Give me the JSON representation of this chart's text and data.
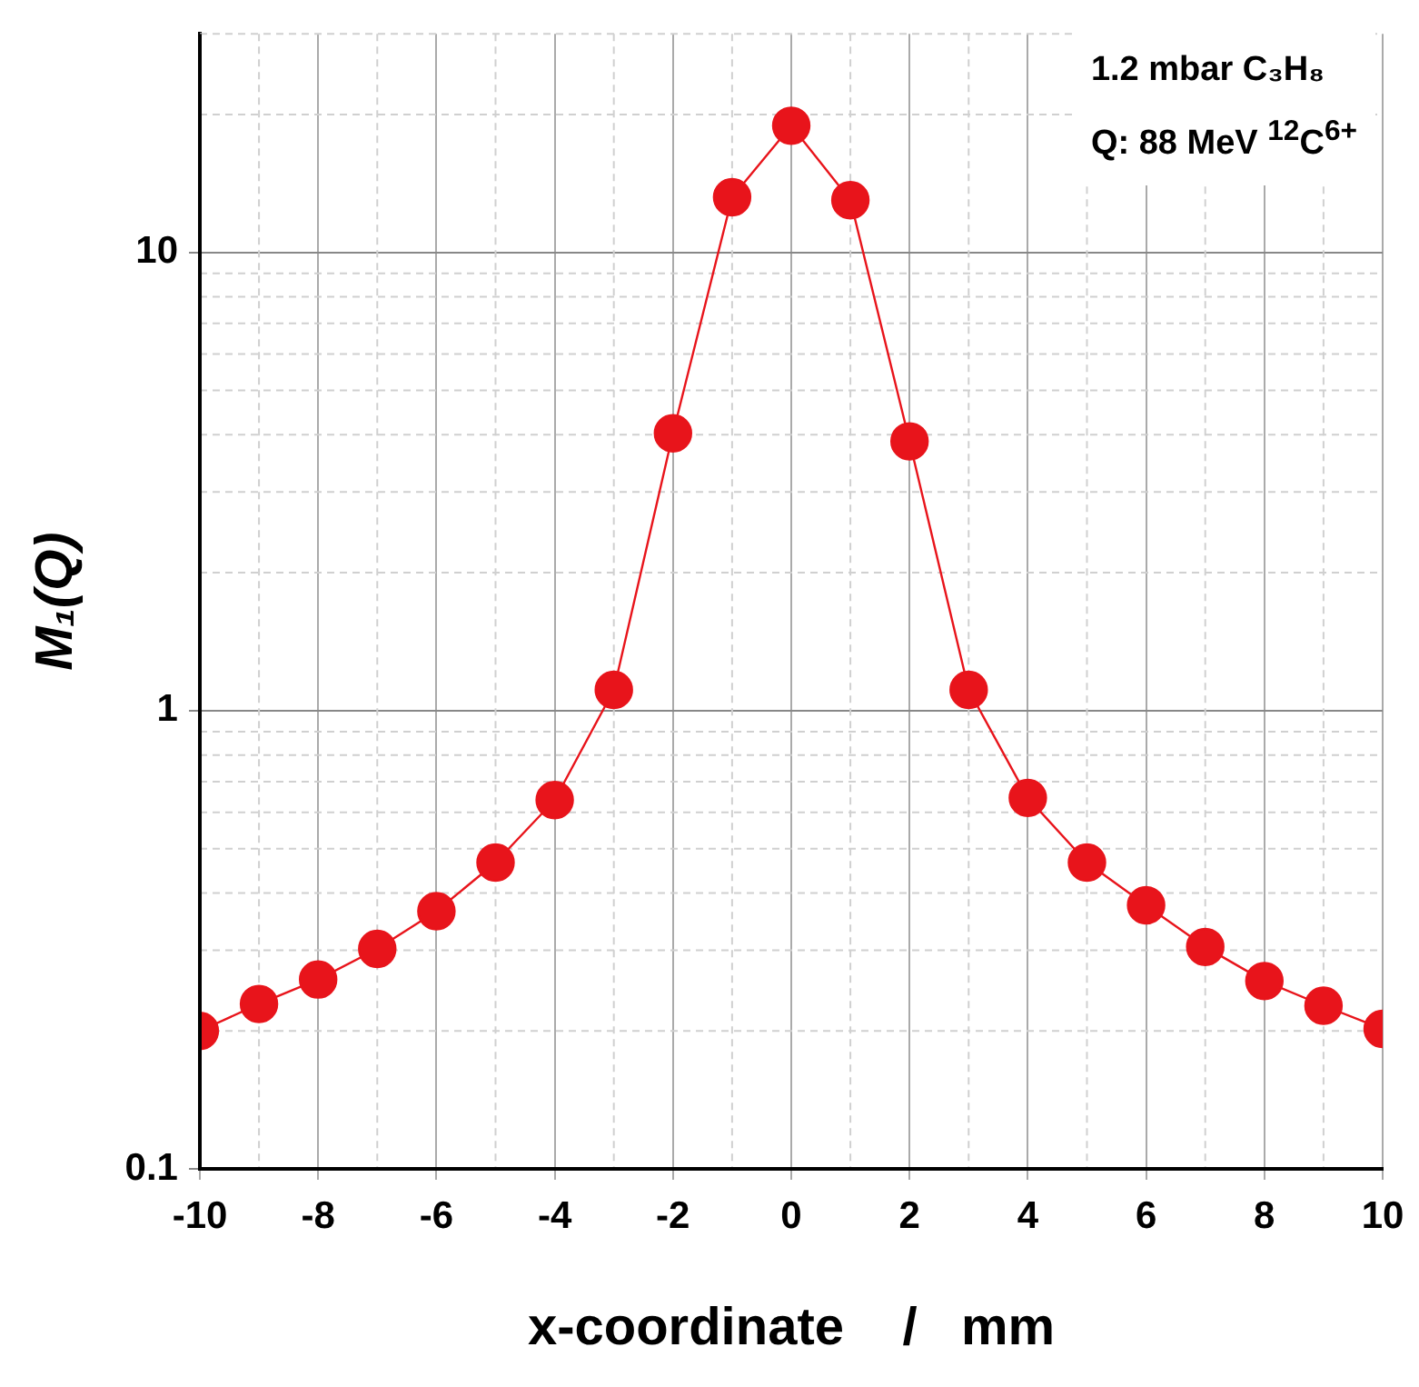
{
  "chart_data": {
    "type": "line",
    "xlabel": "x-coordinate    /   mm",
    "ylabel": "M₁(Q)",
    "x": [
      -10,
      -9,
      -8,
      -7,
      -6,
      -5,
      -4,
      -3,
      -2,
      -1,
      0,
      1,
      2,
      3,
      4,
      5,
      6,
      7,
      8,
      9,
      10
    ],
    "series": [
      {
        "color": "#e8141b",
        "values": [
          0.2,
          0.229,
          0.259,
          0.302,
          0.365,
          0.466,
          0.638,
          1.11,
          4.03,
          13.2,
          18.9,
          13.0,
          3.87,
          1.11,
          0.645,
          0.466,
          0.376,
          0.305,
          0.257,
          0.227,
          0.202
        ]
      }
    ],
    "xlim": [
      -10,
      10
    ],
    "xticks": [
      -10,
      -8,
      -6,
      -4,
      -2,
      0,
      2,
      4,
      6,
      8,
      10
    ],
    "ylim": [
      0.1,
      30
    ],
    "yticks": [
      0.1,
      1,
      10
    ],
    "log": "y",
    "grid": true,
    "legend": false,
    "marker": "circle",
    "line_style": "solid",
    "annotations": [
      "1.2 mbar C₃H₈",
      "Q: 88 MeV $^{12}$C$^{6+}$"
    ]
  }
}
